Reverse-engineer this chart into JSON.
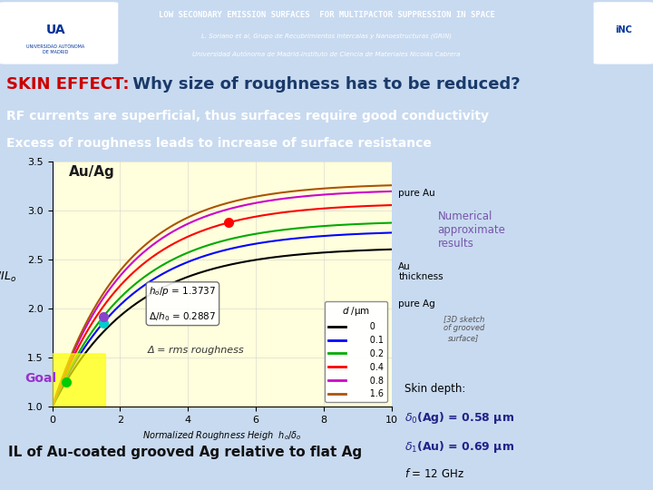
{
  "header_bg": "#3a6eaa",
  "header_title": "LOW SECONDARY EMISSION SURFACES  FOR MULTIPACTOR SUPPRESSION IN SPACE",
  "header_sub1": "L. Soriano et al, Grupo de Recubrimientos Intercalas y Nanoestructuras (GRIN)",
  "header_sub2": "Universidad Autónoma de Madrid-Instituto de Ciencia de Materiales Nicolás Cabrera",
  "slide_bg": "#c8daf0",
  "title_text": "SKIN EFFECT: Why size of roughness has to be reduced?",
  "title_bg": "#d0e4f7",
  "bullet1": "RF currents are superficial, thus surfaces require good conductivity",
  "bullet1_bg": "#4a90d9",
  "bullet2": "Excess of roughness leads to increase of surface resistance",
  "bullet2_bg": "#5ba0e0",
  "plot_bg": "#ffffdd",
  "xlabel": "Normalized Roughness Heigh  $h_o / \\delta_o$",
  "ylabel": "$IL/IL_o$",
  "plot_label": "Au/Ag",
  "ylim": [
    1.0,
    3.5
  ],
  "xlim": [
    0,
    10
  ],
  "yticks": [
    1.0,
    1.5,
    2.0,
    2.5,
    3.0,
    3.5
  ],
  "xticks": [
    0,
    2,
    4,
    6,
    8,
    10
  ],
  "legend_d": [
    "0",
    "0.1",
    "0.2",
    "0.4",
    "0.8",
    "1.6"
  ],
  "line_colors": [
    "#000000",
    "#0000ff",
    "#00aa00",
    "#ff0000",
    "#cc00cc",
    "#aa5500"
  ],
  "goal_text": "Goal",
  "delta_text": "Δ = rms roughness",
  "h_over_p": "$h_o/p$ = 1.3737",
  "delta_over_h": "$\\Delta/h_0$ = 0.2887",
  "numerical_text": "Numerical\napproximate\nresults",
  "pure_au_label": "pure Au",
  "pure_ag_label": "pure Ag",
  "au_thickness_label": "Au\nthickness",
  "skin_depth_title": "Skin depth:",
  "skin_depth_ag": "$\\delta_0$(Ag) = 0.58 μm",
  "skin_depth_au": "$\\delta_1$(Au) = 0.69 μm",
  "freq_label": "$f$ = 12 GHz",
  "bottom_label": "IL of Au-coated grooved Ag relative to flat Ag"
}
